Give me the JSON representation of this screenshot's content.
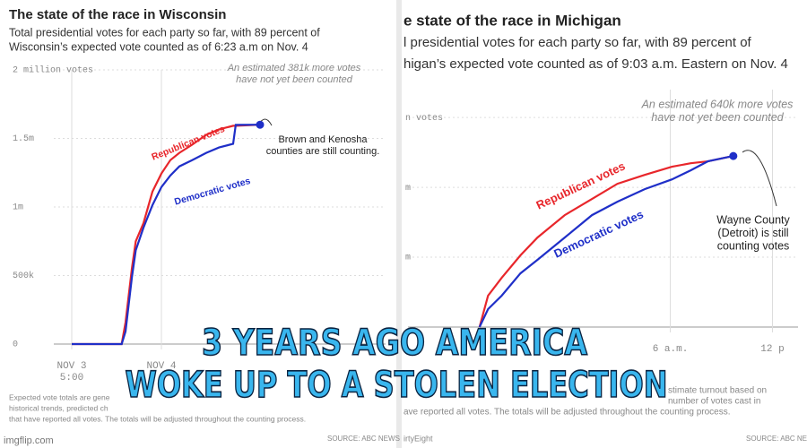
{
  "chart_data": [
    {
      "type": "line",
      "title": "The state of the race in Wisconsin",
      "subtitle": [
        "Total presidential votes for each party so far, with 89 percent of",
        "Wisconsin’s expected vote counted as of 6:23 a.m on Nov. 4"
      ],
      "note": [
        "An estimated 381k more votes",
        "have not yet been counted"
      ],
      "callout": [
        "Brown and Kenosha",
        "counties are still counting."
      ],
      "footnote": [
        "Expected vote totals are gene",
        "historical trends, predicted ch",
        "that have reported all votes. The totals will be adjusted throughout the counting process."
      ],
      "source": "SOURCE: ABC NEWS",
      "x": [
        0,
        3.9,
        4.2,
        4.7,
        5.0,
        5.6,
        6.3,
        7.0,
        7.7,
        8.4,
        9.4,
        10.5,
        11.5,
        12.6,
        12.8,
        14.7
      ],
      "series": [
        {
          "name": "Republican votes",
          "color": "#e8262b",
          "values": [
            0,
            0,
            158000,
            552000,
            750000,
            882000,
            1112000,
            1244000,
            1342000,
            1395000,
            1454000,
            1526000,
            1566000,
            1592000,
            1592000,
            1600000
          ]
        },
        {
          "name": "Democratic votes",
          "color": "#1f2fc8",
          "values": [
            0,
            0,
            92000,
            487000,
            684000,
            849000,
            1013000,
            1145000,
            1230000,
            1296000,
            1342000,
            1395000,
            1434000,
            1461000,
            1599000,
            1600000
          ]
        }
      ],
      "xlim": [
        -1.4,
        24.5
      ],
      "ylim": [
        0,
        2000000
      ],
      "xticks": [
        {
          "value": 0,
          "label": "NOV 3"
        },
        {
          "value": 7,
          "label": "NOV 4"
        }
      ],
      "xtick_sublabels": [
        "5:00",
        null
      ],
      "yticks": [
        0,
        {
          "value": 500000,
          "label": "500k"
        },
        {
          "value": 1000000,
          "label": "1m"
        },
        {
          "value": 1500000,
          "label": "1.5m"
        },
        {
          "value": 2000000,
          "label": "2 million votes"
        }
      ],
      "grid": true
    },
    {
      "type": "line",
      "title": "e state of the race in Michigan",
      "subtitle": [
        "l presidential votes for each party so far, with 89 percent of",
        "higan’s expected vote counted as of 9:03 a.m. Eastern on Nov. 4"
      ],
      "note": [
        "An estimated 640k more votes",
        "have not yet been counted"
      ],
      "callout": [
        "Wayne County",
        "(Detroit) is still",
        "counting votes"
      ],
      "footnote": [
        "stimate turnout based on",
        "number of votes cast in",
        "ave reported all votes. The totals will be adjusted throughout the counting process."
      ],
      "credit": "irtyEight",
      "source": "SOURCE: ABC NEWS",
      "x": [
        -5.2,
        -4.7,
        -3.9,
        -2.8,
        -1.8,
        -0.2,
        1.4,
        2.9,
        4.5,
        6.1,
        7.2,
        8.2,
        9.7
      ],
      "series": [
        {
          "name": "Republican votes",
          "color": "#e8262b",
          "values": [
            0,
            449000,
            705000,
            1026000,
            1282000,
            1603000,
            1833000,
            2051000,
            2179000,
            2295000,
            2346000,
            2372000,
            2449000
          ]
        },
        {
          "name": "Democratic votes",
          "color": "#1f2fc8",
          "values": [
            0,
            256000,
            449000,
            769000,
            962000,
            1282000,
            1603000,
            1795000,
            1974000,
            2115000,
            2244000,
            2372000,
            2449000
          ]
        }
      ],
      "xlim": [
        -9.4,
        13.5
      ],
      "ylim": [
        0,
        3400000
      ],
      "xticks": [
        {
          "value": 6,
          "label": "6 a.m."
        },
        {
          "value": 12,
          "label": "12 p"
        }
      ],
      "yticks": [
        {
          "value": 1000000,
          "label": "m"
        },
        {
          "value": 2000000,
          "label": "m"
        },
        {
          "value": 3000000,
          "label": "n votes"
        }
      ],
      "grid": true
    }
  ],
  "caption": [
    "3 YEARS AGO AMERICA",
    "WOKE UP TO A STOLEN ELECTION"
  ],
  "watermark": "imgflip.com"
}
